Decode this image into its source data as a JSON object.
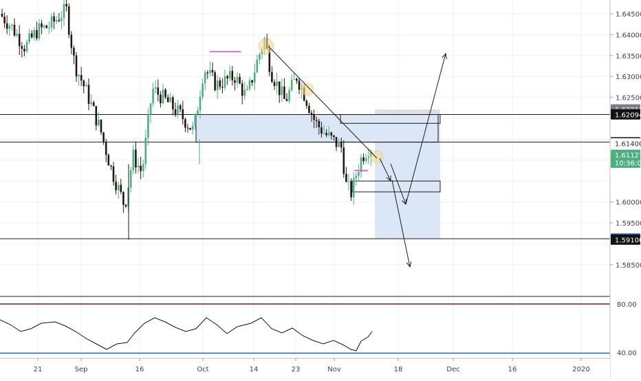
{
  "chart_data": [
    {
      "type": "candlestick",
      "price_axis": {
        "ticks": [
          "1.64500",
          "1.64000",
          "1.63500",
          "1.63000",
          "1.62500",
          "1.60000",
          "1.59500",
          "1.58500"
        ],
        "range": [
          1.585,
          1.648
        ]
      },
      "time_axis": {
        "ticks": [
          "21",
          "Sep",
          "16",
          "Oct",
          "14",
          "23",
          "Nov",
          "18",
          "Dec",
          "16",
          "2020"
        ]
      },
      "price_labels": [
        {
          "text": "1.62212",
          "price": 1.62212,
          "style": "grey"
        },
        {
          "text": "1.62094",
          "price": 1.62094,
          "style": "black"
        },
        {
          "text": "1.61425",
          "price": 1.61425,
          "style": "black"
        },
        {
          "text": "1.61400",
          "price": 1.614,
          "style": "plain"
        },
        {
          "text": "1.61127",
          "price": 1.61127,
          "style": "green"
        },
        {
          "text": "10:36:01",
          "price": 1.6094,
          "style": "green"
        },
        {
          "text": "1.59125",
          "price": 1.59125,
          "style": "blue"
        },
        {
          "text": "1.59100",
          "price": 1.591,
          "style": "black"
        }
      ],
      "horizontal_lines": [
        1.6209,
        1.6143,
        1.5912
      ],
      "last_price": 1.61127,
      "colors": {
        "up": "#4caf7d",
        "down": "#26140f",
        "zone": "#dbe7f6",
        "marker": "#e040e0"
      }
    },
    {
      "type": "line",
      "indicator": "oscillator",
      "levels": {
        "upper": "80.00",
        "lower": "40.00"
      },
      "level_values": [
        80,
        40
      ],
      "range": [
        26,
        86
      ],
      "colors": {
        "upper": "#8e0f4a",
        "lower": "#1f5fd6",
        "line": "#111111"
      }
    }
  ]
}
